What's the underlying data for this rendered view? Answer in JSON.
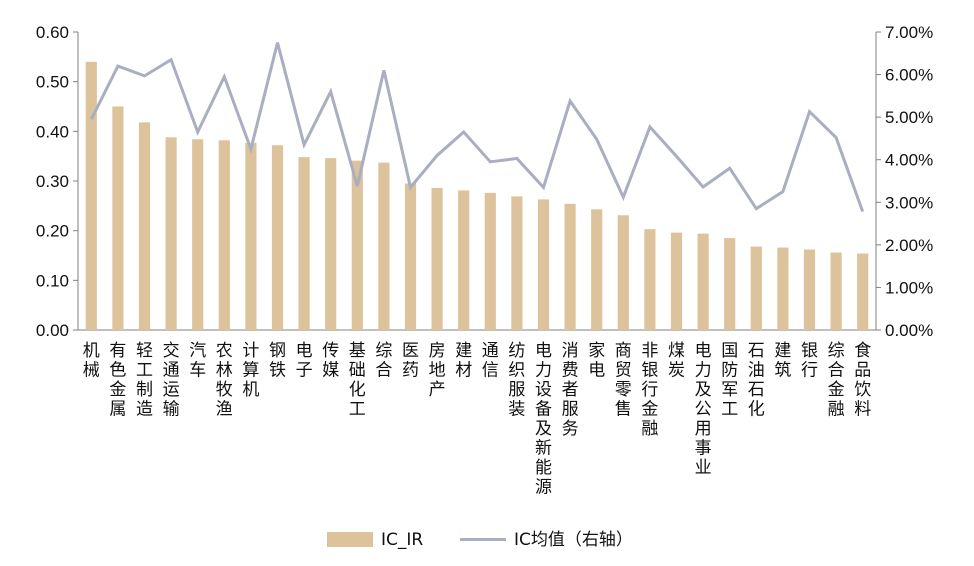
{
  "chart_data": {
    "type": "bar+line",
    "categories": [
      "机械",
      "有色金属",
      "轻工制造",
      "交通运输",
      "汽车",
      "农林牧渔",
      "计算机",
      "钢铁",
      "电子",
      "传媒",
      "基础化工",
      "综合",
      "医药",
      "房地产",
      "建材",
      "通信",
      "纺织服装",
      "电力设备及新能源",
      "消费者服务",
      "家电",
      "商贸零售",
      "非银行金融",
      "煤炭",
      "电力及公用事业",
      "国防军工",
      "石油石化",
      "建筑",
      "银行",
      "综合金融",
      "食品饮料"
    ],
    "series": [
      {
        "name": "IC_IR",
        "type": "bar",
        "axis": "left",
        "color": "#dcc39b",
        "values": [
          0.54,
          0.45,
          0.418,
          0.388,
          0.384,
          0.382,
          0.377,
          0.372,
          0.348,
          0.346,
          0.341,
          0.337,
          0.295,
          0.286,
          0.281,
          0.276,
          0.269,
          0.263,
          0.254,
          0.243,
          0.231,
          0.203,
          0.196,
          0.194,
          0.185,
          0.168,
          0.166,
          0.162,
          0.156,
          0.154
        ]
      },
      {
        "name": "IC均值（右轴）",
        "type": "line",
        "axis": "right",
        "color": "#a9aec0",
        "values": [
          4.95,
          6.2,
          5.97,
          6.35,
          4.65,
          5.95,
          4.25,
          6.75,
          4.35,
          5.6,
          3.38,
          6.1,
          3.35,
          4.1,
          4.65,
          3.95,
          4.03,
          3.35,
          5.38,
          4.48,
          3.12,
          4.77,
          4.08,
          3.36,
          3.8,
          2.85,
          3.25,
          5.13,
          4.52,
          2.78
        ]
      }
    ],
    "y_left": {
      "min": 0,
      "max": 0.6,
      "ticks": [
        "0.00",
        "0.10",
        "0.20",
        "0.30",
        "0.40",
        "0.50",
        "0.60"
      ]
    },
    "y_right": {
      "min": 0,
      "max": 7,
      "ticks": [
        "0.00%",
        "1.00%",
        "2.00%",
        "3.00%",
        "4.00%",
        "5.00%",
        "6.00%",
        "7.00%"
      ]
    },
    "legend": {
      "position": "bottom",
      "items": [
        {
          "label": "IC_IR",
          "symbol": "bar",
          "color": "#dcc39b"
        },
        {
          "label": "IC均值（右轴）",
          "symbol": "line",
          "color": "#a9aec0"
        }
      ]
    },
    "grid": false
  }
}
